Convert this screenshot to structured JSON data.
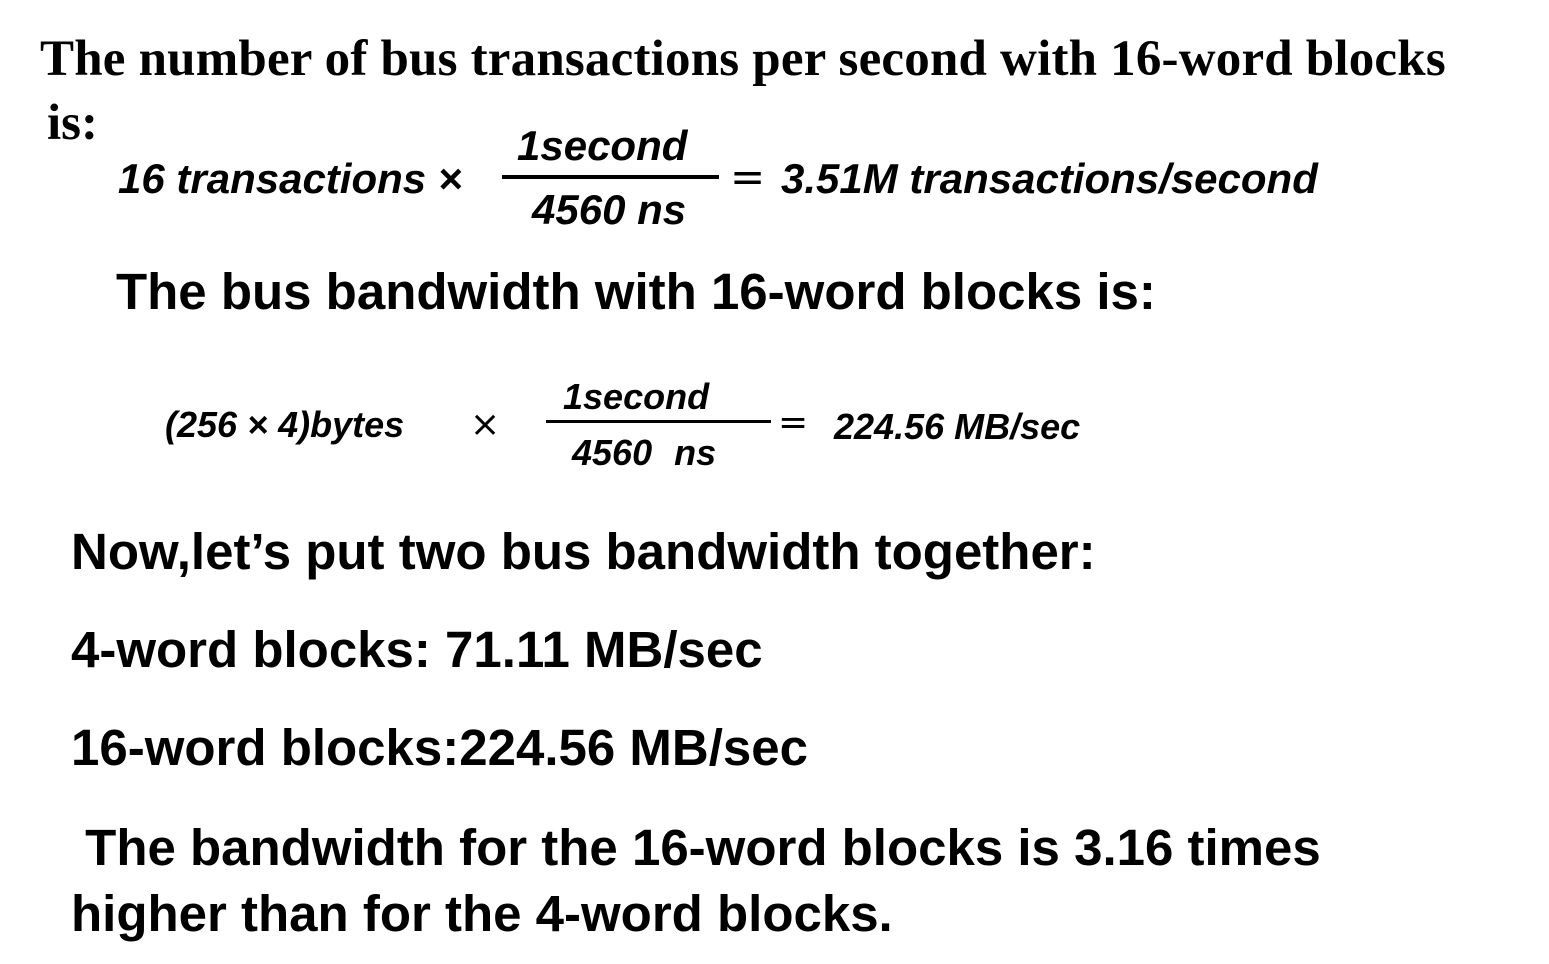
{
  "heading1": "The number of bus transactions per second with 16-word blocks",
  "heading1_cont": "is:",
  "equation1": {
    "left": "16 transactions ×",
    "numerator": "1second",
    "denominator": "4560 ns",
    "equals": "=",
    "result": "3.51M transactions/second"
  },
  "heading2": "The bus bandwidth with 16-word blocks is:",
  "equation2": {
    "left": "(256 × 4)bytes",
    "times": "×",
    "numerator": "1second",
    "denominator": "4560 ns",
    "equals": "=",
    "result": "224.56 MB/sec"
  },
  "heading3": "Now,let’s put two bus bandwidth together:",
  "line_4word": "4-word blocks: 71.11 MB/sec",
  "line_16word": "16-word blocks:224.56 MB/sec",
  "conclusion": " The bandwidth for the 16-word blocks is 3.16 times\nhigher than for the 4-word blocks."
}
